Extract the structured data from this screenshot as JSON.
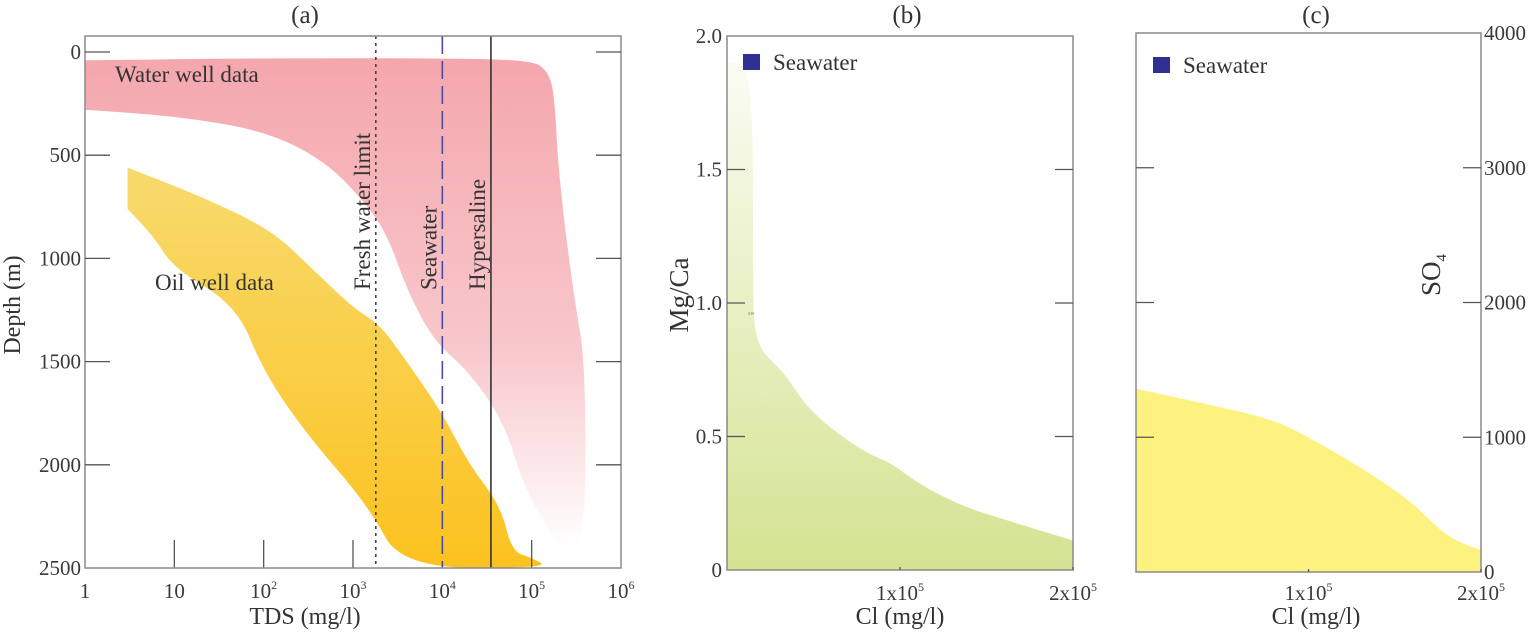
{
  "figure": {
    "panels": [
      "(a)",
      "(b)",
      "(c)"
    ]
  },
  "colors": {
    "water_well_top": "#f4a7ad",
    "water_well_bottom": "#ffffff",
    "oil_well_top": "#f7da6e",
    "oil_well_bottom": "#fcc21f",
    "mgca_top": "#fbfcf4",
    "mgca_bottom": "#d4e391",
    "so4_fill": "#fdf280",
    "seawater_marker": "#2e3192",
    "seawater_line": "#4a4aa8",
    "hypersaline_line": "#333333",
    "fresh_line": "#444444"
  },
  "chart_data": [
    {
      "id": "a",
      "type": "area",
      "title": "(a)",
      "xlabel": "TDS (mg/l)",
      "ylabel": "Depth (m)",
      "xscale": "log",
      "xlim": [
        1,
        1000000
      ],
      "ylim": [
        2500,
        0
      ],
      "y_inverted": true,
      "xticks": [
        {
          "value": 1,
          "base": "1",
          "exp": ""
        },
        {
          "value": 10,
          "base": "10",
          "exp": ""
        },
        {
          "value": 100,
          "base": "10",
          "exp": "2"
        },
        {
          "value": 1000,
          "base": "10",
          "exp": "3"
        },
        {
          "value": 10000,
          "base": "10",
          "exp": "4"
        },
        {
          "value": 100000,
          "base": "10",
          "exp": "5"
        },
        {
          "value": 1000000,
          "base": "10",
          "exp": "6"
        }
      ],
      "yticks": [
        "0",
        "500",
        "1000",
        "1500",
        "2000",
        "2500"
      ],
      "yticks_values": [
        0,
        500,
        1000,
        1500,
        2000,
        2500
      ],
      "grid": false,
      "series": [
        {
          "name": "Water well data",
          "label_at": {
            "tds": 18,
            "depth": 150
          },
          "polygon": [
            [
              1,
              40
            ],
            [
              100,
              30
            ],
            [
              10000,
              30
            ],
            [
              100000,
              40
            ],
            [
              150000,
              90
            ],
            [
              180000,
              200
            ],
            [
              200000,
              600
            ],
            [
              300000,
              1200
            ],
            [
              400000,
              1500
            ],
            [
              400000,
              2400
            ],
            [
              200000,
              2400
            ],
            [
              80000,
              2100
            ],
            [
              50000,
              1800
            ],
            [
              20000,
              1550
            ],
            [
              8000,
              1400
            ],
            [
              4000,
              1150
            ],
            [
              2500,
              900
            ],
            [
              1500,
              750
            ],
            [
              500,
              530
            ],
            [
              100,
              380
            ],
            [
              10,
              310
            ],
            [
              1,
              280
            ]
          ]
        },
        {
          "name": "Oil well data",
          "label_at": {
            "tds": 25,
            "depth": 1130
          },
          "polygon": [
            [
              3,
              560
            ],
            [
              20,
              700
            ],
            [
              120,
              860
            ],
            [
              350,
              1050
            ],
            [
              1000,
              1240
            ],
            [
              2000,
              1320
            ],
            [
              4000,
              1500
            ],
            [
              10000,
              1750
            ],
            [
              20000,
              2000
            ],
            [
              45000,
              2200
            ],
            [
              60000,
              2420
            ],
            [
              100000,
              2450
            ],
            [
              160000,
              2500
            ],
            [
              3500,
              2500
            ],
            [
              1500,
              2200
            ],
            [
              300,
              1850
            ],
            [
              100,
              1550
            ],
            [
              50,
              1230
            ],
            [
              10,
              1050
            ],
            [
              6,
              900
            ],
            [
              3,
              760
            ]
          ]
        }
      ],
      "reference_lines": [
        {
          "name": "Fresh water limit",
          "tds": 1800,
          "style": "dotted"
        },
        {
          "name": "Seawater",
          "tds": 10000,
          "style": "dashed"
        },
        {
          "name": "Hypersaline",
          "tds": 35000,
          "style": "solid"
        }
      ],
      "minor_ticks_bottom": [
        10,
        100,
        1000,
        100000
      ]
    },
    {
      "id": "b",
      "type": "area",
      "title": "(b)",
      "xlabel": "Cl (mg/l)",
      "ylabel": "Mg/Ca",
      "xlim": [
        0,
        200000
      ],
      "ylim": [
        0,
        2.0
      ],
      "xticks": [
        {
          "value": 100000,
          "base": "1x10",
          "exp": "5"
        },
        {
          "value": 200000,
          "base": "2x10",
          "exp": "5"
        }
      ],
      "yticks": [
        "0",
        "0.5",
        "1.0",
        "1.5",
        "2.0"
      ],
      "yticks_values": [
        0,
        0.5,
        1.0,
        1.5,
        2.0
      ],
      "legend": {
        "label": "Seawater",
        "position": "top-left"
      },
      "annotation_small": "sw",
      "grid": false,
      "series": [
        {
          "name": "Mg/Ca envelope",
          "upper_boundary": [
            [
              0,
              1.9
            ],
            [
              15000,
              1.9
            ],
            [
              15000,
              1.0
            ],
            [
              16000,
              0.9
            ],
            [
              20000,
              0.82
            ],
            [
              28000,
              0.77
            ],
            [
              35000,
              0.72
            ],
            [
              45000,
              0.62
            ],
            [
              60000,
              0.53
            ],
            [
              80000,
              0.44
            ],
            [
              95000,
              0.4
            ],
            [
              105000,
              0.35
            ],
            [
              120000,
              0.29
            ],
            [
              140000,
              0.23
            ],
            [
              160000,
              0.19
            ],
            [
              180000,
              0.15
            ],
            [
              200000,
              0.11
            ]
          ]
        }
      ]
    },
    {
      "id": "c",
      "type": "area",
      "title": "(c)",
      "xlabel": "Cl (mg/l)",
      "ylabel": "SO4",
      "ylabel_main": "SO",
      "ylabel_sub": "4",
      "xlim": [
        0,
        200000
      ],
      "ylim": [
        0,
        4000
      ],
      "xticks": [
        {
          "value": 100000,
          "base": "1x10",
          "exp": "5"
        },
        {
          "value": 200000,
          "base": "2x10",
          "exp": "5"
        }
      ],
      "yticks": [
        "0",
        "1000",
        "2000",
        "3000",
        "4000"
      ],
      "yticks_values": [
        0,
        1000,
        2000,
        3000,
        4000
      ],
      "yaxis_side": "right",
      "legend": {
        "label": "Seawater",
        "position": "top-left"
      },
      "grid": false,
      "series": [
        {
          "name": "SO4 envelope",
          "upper_boundary": [
            [
              0,
              1360
            ],
            [
              40000,
              1250
            ],
            [
              80000,
              1130
            ],
            [
              100000,
              1000
            ],
            [
              130000,
              780
            ],
            [
              160000,
              520
            ],
            [
              180000,
              260
            ],
            [
              200000,
              160
            ]
          ]
        }
      ]
    }
  ]
}
